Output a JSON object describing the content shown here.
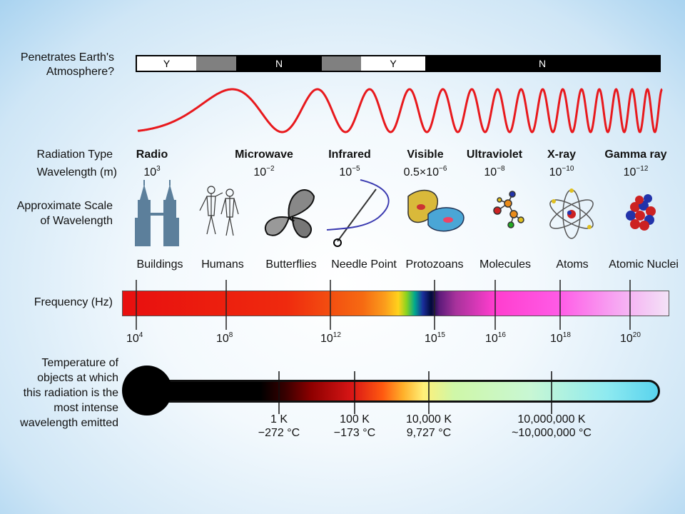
{
  "atmosphere": {
    "label_line1": "Penetrates Earth's",
    "label_line2": "Atmosphere?",
    "segments": [
      {
        "text": "Y",
        "color": "#ffffff",
        "text_color": "#000000"
      },
      {
        "text": "",
        "color": "#808080",
        "text_color": "#000000"
      },
      {
        "text": "N",
        "color": "#000000",
        "text_color": "#ffffff"
      },
      {
        "text": "",
        "color": "#808080",
        "text_color": "#000000"
      },
      {
        "text": "Y",
        "color": "#ffffff",
        "text_color": "#000000"
      },
      {
        "text": "N",
        "color": "#000000",
        "text_color": "#ffffff"
      }
    ]
  },
  "wave_color": "#e8191d",
  "row_labels": {
    "radiation_type": "Radiation Type",
    "wavelength": "Wavelength (m)",
    "scale_line1": "Approximate Scale",
    "scale_line2": "of Wavelength",
    "frequency": "Frequency (Hz)",
    "temp_line1": "Temperature of",
    "temp_line2": "objects at which",
    "temp_line3": "this radiation is the",
    "temp_line4": "most intense",
    "temp_line5": "wavelength emitted"
  },
  "radiation_types": [
    {
      "name": "Radio",
      "wl_base": "10",
      "wl_exp": "3",
      "scale": "Buildings",
      "icon": "buildings-icon"
    },
    {
      "name": "Microwave",
      "wl_base": "10",
      "wl_exp": "−2",
      "scale": "Humans",
      "icon": "humans-icon"
    },
    {
      "name": "Infrared",
      "wl_base": "10",
      "wl_exp": "−5",
      "scale": "Butterflies",
      "icon": "butterfly-icon"
    },
    {
      "name": "Visible",
      "wl_base": "0.5×10",
      "wl_exp": "−6",
      "scale": "Needle Point",
      "icon": "needle-icon"
    },
    {
      "name": "Ultraviolet",
      "wl_base": "10",
      "wl_exp": "−8",
      "scale": "Protozoans",
      "icon": "protozoan-icon"
    },
    {
      "name": "X-ray",
      "wl_base": "10",
      "wl_exp": "−10",
      "scale": "Molecules",
      "icon": "molecule-icon"
    },
    {
      "name": "Gamma ray",
      "wl_base": "10",
      "wl_exp": "−12",
      "scale": "Atoms",
      "icon": "atom-icon"
    }
  ],
  "scale_extra": {
    "label": "Atomic Nuclei",
    "icon": "nucleus-icon"
  },
  "frequency_ticks": [
    {
      "base": "10",
      "exp": "4"
    },
    {
      "base": "10",
      "exp": "8"
    },
    {
      "base": "10",
      "exp": "12"
    },
    {
      "base": "10",
      "exp": "15"
    },
    {
      "base": "10",
      "exp": "16"
    },
    {
      "base": "10",
      "exp": "18"
    },
    {
      "base": "10",
      "exp": "20"
    }
  ],
  "temperature_ticks": [
    {
      "kelvin": "1 K",
      "celsius": "−272 °C"
    },
    {
      "kelvin": "100 K",
      "celsius": "−173 °C"
    },
    {
      "kelvin": "10,000 K",
      "celsius": "9,727 °C"
    },
    {
      "kelvin": "10,000,000 K",
      "celsius": "~10,000,000 °C"
    }
  ]
}
